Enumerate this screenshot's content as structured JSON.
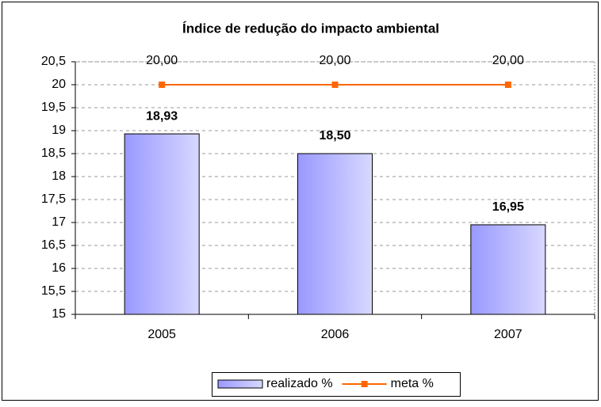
{
  "chart_data": {
    "type": "bar",
    "title": "Índice de redução do impacto ambiental",
    "categories": [
      "2005",
      "2006",
      "2007"
    ],
    "series": [
      {
        "name": "realizado %",
        "type": "bar",
        "color": "#9999ff",
        "values": [
          18.93,
          18.5,
          16.95
        ],
        "value_labels": [
          "18,93",
          "18,50",
          "16,95"
        ]
      },
      {
        "name": "meta %",
        "type": "line",
        "color": "#ff6600",
        "values": [
          20,
          20,
          20
        ],
        "value_labels": [
          "20,00",
          "20,00",
          "20,00"
        ]
      }
    ],
    "ylim": [
      15,
      20.5
    ],
    "yticks": [
      15,
      {
        "value": 15.5,
        "label": "15,5"
      },
      16,
      {
        "value": 16.5,
        "label": "16,5"
      },
      17,
      {
        "value": 17.5,
        "label": "17,5"
      },
      18,
      {
        "value": 18.5,
        "label": "18,5"
      },
      19,
      {
        "value": 19.5,
        "label": "19,5"
      },
      20,
      {
        "value": 20.5,
        "label": "20,5"
      }
    ],
    "grid": true,
    "legend": "bottom"
  }
}
